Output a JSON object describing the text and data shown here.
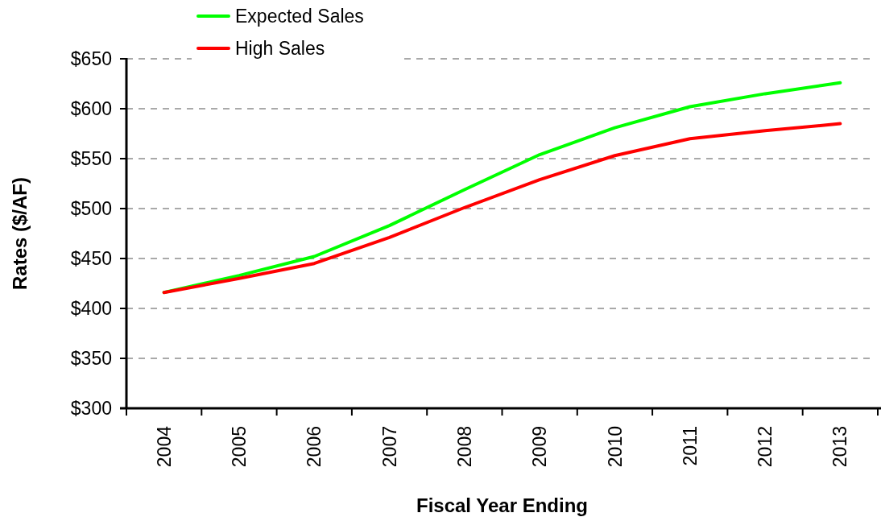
{
  "chart_data": {
    "type": "line",
    "xlabel": "Fiscal Year Ending",
    "ylabel": "Rates ($/AF)",
    "categories": [
      "2004",
      "2005",
      "2006",
      "2007",
      "2008",
      "2009",
      "2010",
      "2011",
      "2012",
      "2013"
    ],
    "series": [
      {
        "name": "Expected Sales",
        "color": "#00ff00",
        "values": [
          416,
          433,
          452,
          483,
          519,
          554,
          581,
          602,
          615,
          626
        ]
      },
      {
        "name": "High Sales",
        "color": "#ff0000",
        "values": [
          416,
          430,
          445,
          471,
          501,
          529,
          553,
          570,
          578,
          585
        ]
      }
    ],
    "ylim": [
      300,
      650
    ],
    "yticks": [
      {
        "value": 300,
        "label": "$300"
      },
      {
        "value": 350,
        "label": "$350"
      },
      {
        "value": 400,
        "label": "$400"
      },
      {
        "value": 450,
        "label": "$450"
      },
      {
        "value": 500,
        "label": "$500"
      },
      {
        "value": 550,
        "label": "$550"
      },
      {
        "value": 600,
        "label": "$600"
      },
      {
        "value": 650,
        "label": "$650"
      }
    ],
    "grid": "y",
    "legend": "top",
    "marker": "none",
    "line_style": "solid"
  }
}
